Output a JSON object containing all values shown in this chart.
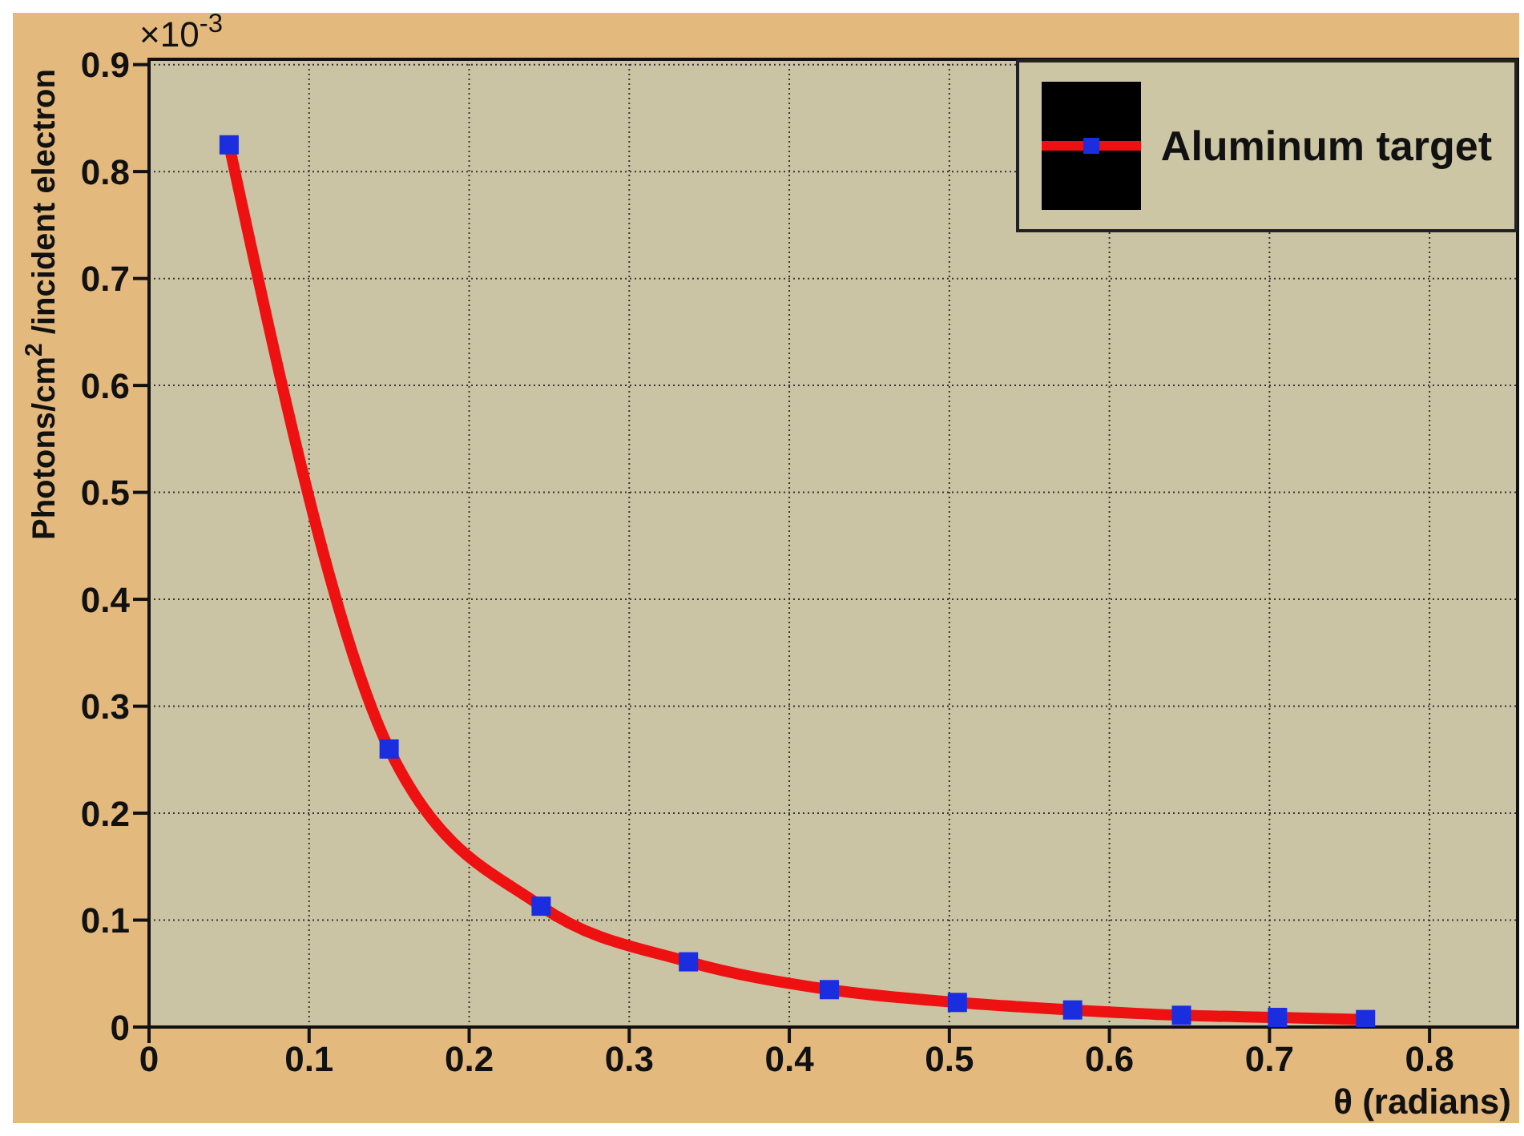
{
  "chart_data": {
    "type": "line",
    "xlabel": "θ (radians)",
    "ylabel": "Photons/cm$^{2}$/incident electron",
    "annotations": [
      "×10$^{-3}$"
    ],
    "series": [
      {
        "name": "Aluminum target",
        "color": "#ee1111",
        "marker": "none",
        "x": [
          0.05,
          0.15,
          0.245,
          0.337,
          0.425,
          0.505,
          0.577,
          0.645,
          0.705,
          0.76
        ],
        "values": [
          0.825,
          0.26,
          0.113,
          0.061,
          0.035,
          0.023,
          0.016,
          0.011,
          0.009,
          0.007
        ]
      },
      {
        "type": "scatter",
        "color": "#1a2ee0",
        "x": [
          0.05,
          0.15,
          0.245,
          0.337,
          0.425,
          0.505,
          0.577,
          0.645,
          0.705,
          0.76
        ],
        "values": [
          0.825,
          0.26,
          0.113,
          0.061,
          0.035,
          0.023,
          0.016,
          0.011,
          0.009,
          0.007
        ]
      }
    ],
    "xlim": [
      0,
      0.855
    ],
    "xticks": [
      0,
      0.1,
      0.2,
      0.3,
      0.4,
      0.5,
      0.6,
      0.7,
      0.8
    ],
    "ylim": [
      0,
      0.905
    ],
    "yticks": [
      0,
      0.1,
      0.2,
      0.3,
      0.4,
      0.5,
      0.6,
      0.7,
      0.8,
      0.9
    ],
    "grid": true,
    "legend": "top right",
    "marker": "square",
    "line_style": "solid"
  }
}
